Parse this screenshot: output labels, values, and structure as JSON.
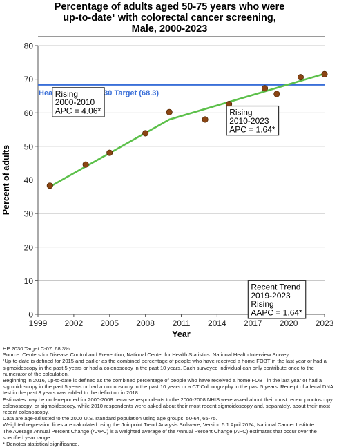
{
  "title_lines": [
    "Percentage of adults aged 50-75 years who were",
    "up-to-date¹ with colorectal cancer screening,",
    "Male,  2000-2023"
  ],
  "chart_data": {
    "type": "scatter",
    "xlabel": "Year",
    "ylabel": "Percent of adults",
    "xlim": [
      1999,
      2023
    ],
    "ylim": [
      0,
      80
    ],
    "xticks": [
      1999,
      2002,
      2005,
      2008,
      2011,
      2014,
      2017,
      2020,
      2023
    ],
    "yticks": [
      0,
      10,
      20,
      30,
      40,
      50,
      60,
      70,
      80
    ],
    "grid": "horizontal",
    "observed": {
      "x": [
        2000,
        2003,
        2005,
        2008,
        2010,
        2013,
        2015,
        2018,
        2019,
        2021,
        2023
      ],
      "y": [
        38.3,
        44.6,
        48.1,
        53.9,
        60.2,
        58.0,
        62.6,
        67.3,
        65.6,
        70.6,
        71.5
      ],
      "color": "#8b4513"
    },
    "trend": {
      "x": [
        2000,
        2010,
        2023
      ],
      "y": [
        38.0,
        58.0,
        71.6
      ],
      "color": "#5cc04a"
    },
    "target": {
      "value": 68.3,
      "label": "Healthy People 2030 Target (68.3)",
      "color": "#3a6fd8"
    },
    "annotations": [
      {
        "lines": [
          "Rising",
          "2000-2010",
          "APC =  4.06*"
        ],
        "x": 2000.2,
        "y": 67.5
      },
      {
        "lines": [
          "Rising",
          "2010-2023",
          "APC =  1.64*"
        ],
        "x": 2014.8,
        "y": 62.0
      },
      {
        "lines": [
          "Recent Trend",
          "2019-2023",
          "Rising",
          "AAPC =  1.64*"
        ],
        "x": 2016.6,
        "y": 10.0
      }
    ]
  },
  "footnotes": [
    "HP 2030 Target C-07: 68.3%.",
    "Source: Centers for Disease Control and Prevention, National Center for Health Statistics. National Health Interview Survey.",
    "¹Up-to-date is defined for 2015 and earlier as the combined percentage of people who have received a home FOBT in the last year or had a sigmoidoscopy in the past 5 years or had a colonoscopy in the past 10 years. Each surveyed individual can only contribute once to the numerator of the calculation.",
    "Beginning in 2016, up-to-date is defined as the combined percentage of people who have received a home FOBT in the last year or had a sigmoidoscopy in the past 5 years or had a colonoscopy in the past 10 years or a CT Colonography in the past 5 years. Receipt of a fecal DNA test in the past 3 years was added to the definition in 2018.",
    "Estimates may be underreported for 2000-2008 because respondents to the 2000-2008 NHIS were asked about their most recent proctoscopy, colonoscopy, or sigmoidoscopy, while 2010 respondents were asked about their most recent sigmoidoscopy and, separately, about their most recent colonoscopy.",
    "Data are age-adjusted to the 2000 U.S. standard population using age groups: 50-64, 65-75.",
    "Weighted regression lines are calculated using the Joinpoint Trend Analysis Software, Version 5.1 April 2024, National Cancer Institute.",
    "The Average Annual Percent Change (AAPC) is a weighted average of the Annual Percent Change (APC) estimates that occur over the specified year range.",
    "* Denotes statistical significance."
  ]
}
